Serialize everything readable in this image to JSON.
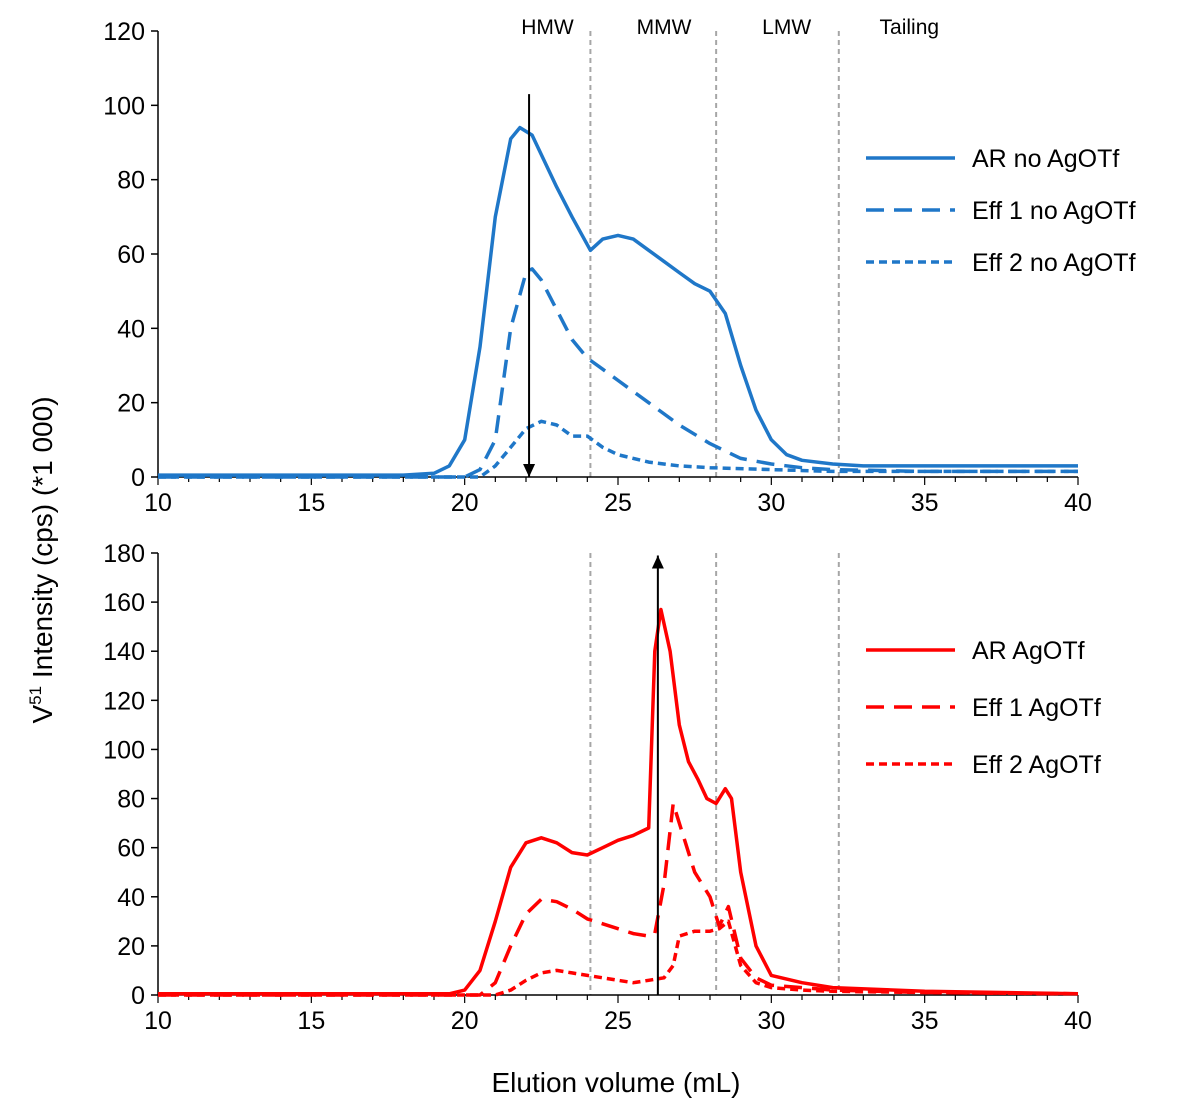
{
  "colors": {
    "blue": "#1f77c8",
    "red": "#ff0000",
    "divider": "#a6a6a6",
    "axis": "#000000"
  },
  "xlabel": "Elution volume (mL)",
  "ylabel": {
    "main": "V",
    "superscript": "51",
    "rest": " Intensity (cps) (*1 000)"
  },
  "regions": {
    "labels": [
      "HMW",
      "MMW",
      "LMW",
      "Tailing"
    ],
    "label_positions": [
      22.7,
      26.5,
      30.5,
      34.5
    ],
    "dividers": [
      24.1,
      28.2,
      32.2
    ]
  },
  "chart_data": [
    {
      "type": "line",
      "xlim": [
        10,
        40
      ],
      "ylim": [
        0,
        120
      ],
      "yticks": [
        0,
        20,
        40,
        60,
        80,
        100,
        120
      ],
      "xticks": [
        10,
        15,
        20,
        25,
        30,
        35,
        40
      ],
      "xtick_labels": [
        "10",
        "15",
        "20",
        "25",
        "30",
        "35",
        "40"
      ],
      "ytick_labels": [
        "0",
        "20",
        "40",
        "60",
        "80",
        "100",
        "120"
      ],
      "grid": false,
      "legend_position": "right",
      "arrow": {
        "x": 22.1,
        "from": 103,
        "to": 0,
        "direction": "down"
      },
      "series": [
        {
          "name": "AR no AgOTf",
          "color": "#1f77c8",
          "dash": "solid",
          "x": [
            10,
            18,
            19,
            19.5,
            20,
            20.5,
            21,
            21.5,
            21.8,
            22.2,
            22.6,
            23,
            23.5,
            24.1,
            24.5,
            25,
            25.5,
            26,
            26.5,
            27,
            27.5,
            28,
            28.5,
            29,
            29.5,
            30,
            30.5,
            31,
            32,
            33,
            35,
            40
          ],
          "y": [
            0.5,
            0.5,
            1,
            3,
            10,
            35,
            70,
            91,
            94,
            92,
            85,
            78,
            70,
            61,
            64,
            65,
            64,
            61,
            58,
            55,
            52,
            50,
            44,
            30,
            18,
            10,
            6,
            4.5,
            3.5,
            3,
            3,
            3
          ]
        },
        {
          "name": "Eff 1 no AgOTf",
          "color": "#1f77c8",
          "dash": "long",
          "x": [
            10,
            20,
            20.5,
            21,
            21.5,
            22,
            22.2,
            22.5,
            23,
            23.5,
            24,
            24.5,
            25,
            26,
            27,
            28,
            28.5,
            29,
            30,
            31,
            32,
            35,
            40
          ],
          "y": [
            0,
            0,
            2,
            10,
            40,
            55,
            56,
            53,
            45,
            37,
            32,
            29,
            26,
            20,
            14,
            9,
            7,
            5,
            3.5,
            2.5,
            2,
            1.5,
            1.5
          ]
        },
        {
          "name": "Eff 2 no AgOTf",
          "color": "#1f77c8",
          "dash": "short",
          "x": [
            10,
            20.5,
            21,
            21.5,
            22,
            22.5,
            23,
            23.5,
            24,
            24.5,
            25,
            26,
            27,
            28,
            30,
            32,
            35,
            40
          ],
          "y": [
            0,
            0,
            3,
            8,
            13,
            15,
            14,
            11,
            11,
            8,
            6,
            4,
            3,
            2.5,
            2,
            1.5,
            1.5,
            1.5
          ]
        }
      ]
    },
    {
      "type": "line",
      "xlim": [
        10,
        40
      ],
      "ylim": [
        0,
        180
      ],
      "yticks": [
        0,
        20,
        40,
        60,
        80,
        100,
        120,
        140,
        160,
        180
      ],
      "xticks": [
        10,
        15,
        20,
        25,
        30,
        35,
        40
      ],
      "xtick_labels": [
        "10",
        "15",
        "20",
        "25",
        "30",
        "35",
        "40"
      ],
      "ytick_labels": [
        "0",
        "20",
        "40",
        "60",
        "80",
        "100",
        "120",
        "140",
        "160",
        "180"
      ],
      "grid": false,
      "legend_position": "right",
      "arrow": {
        "x": 26.3,
        "from": 0,
        "to": 179,
        "direction": "up"
      },
      "series": [
        {
          "name": "AR AgOTf",
          "color": "#ff0000",
          "dash": "solid",
          "x": [
            10,
            19.5,
            20,
            20.5,
            21,
            21.5,
            22,
            22.5,
            23,
            23.5,
            24,
            24.5,
            25,
            25.5,
            26,
            26.2,
            26.4,
            26.7,
            27,
            27.3,
            27.6,
            27.9,
            28.2,
            28.5,
            28.7,
            29,
            29.5,
            30,
            31,
            32,
            35,
            40
          ],
          "y": [
            0.5,
            0.5,
            2,
            10,
            30,
            52,
            62,
            64,
            62,
            58,
            57,
            60,
            63,
            65,
            68,
            140,
            157,
            140,
            110,
            95,
            88,
            80,
            78,
            84,
            80,
            50,
            20,
            8,
            5,
            3,
            1.5,
            0.5
          ]
        },
        {
          "name": "Eff 1 AgOTf",
          "color": "#ff0000",
          "dash": "long",
          "x": [
            10,
            20.5,
            21,
            21.5,
            22,
            22.5,
            23,
            23.5,
            24,
            24.5,
            25,
            25.5,
            26,
            26.2,
            26.5,
            26.8,
            27,
            27.5,
            28,
            28.3,
            28.6,
            29,
            29.5,
            30,
            31,
            32,
            35,
            40
          ],
          "y": [
            0,
            0,
            5,
            20,
            33,
            39,
            38,
            35,
            31,
            29,
            27,
            25,
            24,
            25,
            45,
            78,
            70,
            50,
            40,
            28,
            36,
            15,
            7,
            4,
            3,
            2,
            1,
            0.5
          ]
        },
        {
          "name": "Eff 2 AgOTf",
          "color": "#ff0000",
          "dash": "short",
          "x": [
            10,
            21,
            21.5,
            22,
            22.5,
            23,
            23.5,
            24,
            24.5,
            25,
            25.5,
            26,
            26.5,
            26.8,
            27,
            27.5,
            28,
            28.3,
            28.6,
            29,
            29.5,
            30,
            31,
            32,
            35,
            40
          ],
          "y": [
            0,
            0,
            2,
            6,
            9,
            10,
            9,
            8,
            7,
            6,
            5,
            6,
            7,
            12,
            24,
            26,
            26,
            27,
            30,
            12,
            5,
            3,
            2,
            1.5,
            1,
            0.5
          ]
        }
      ]
    }
  ]
}
